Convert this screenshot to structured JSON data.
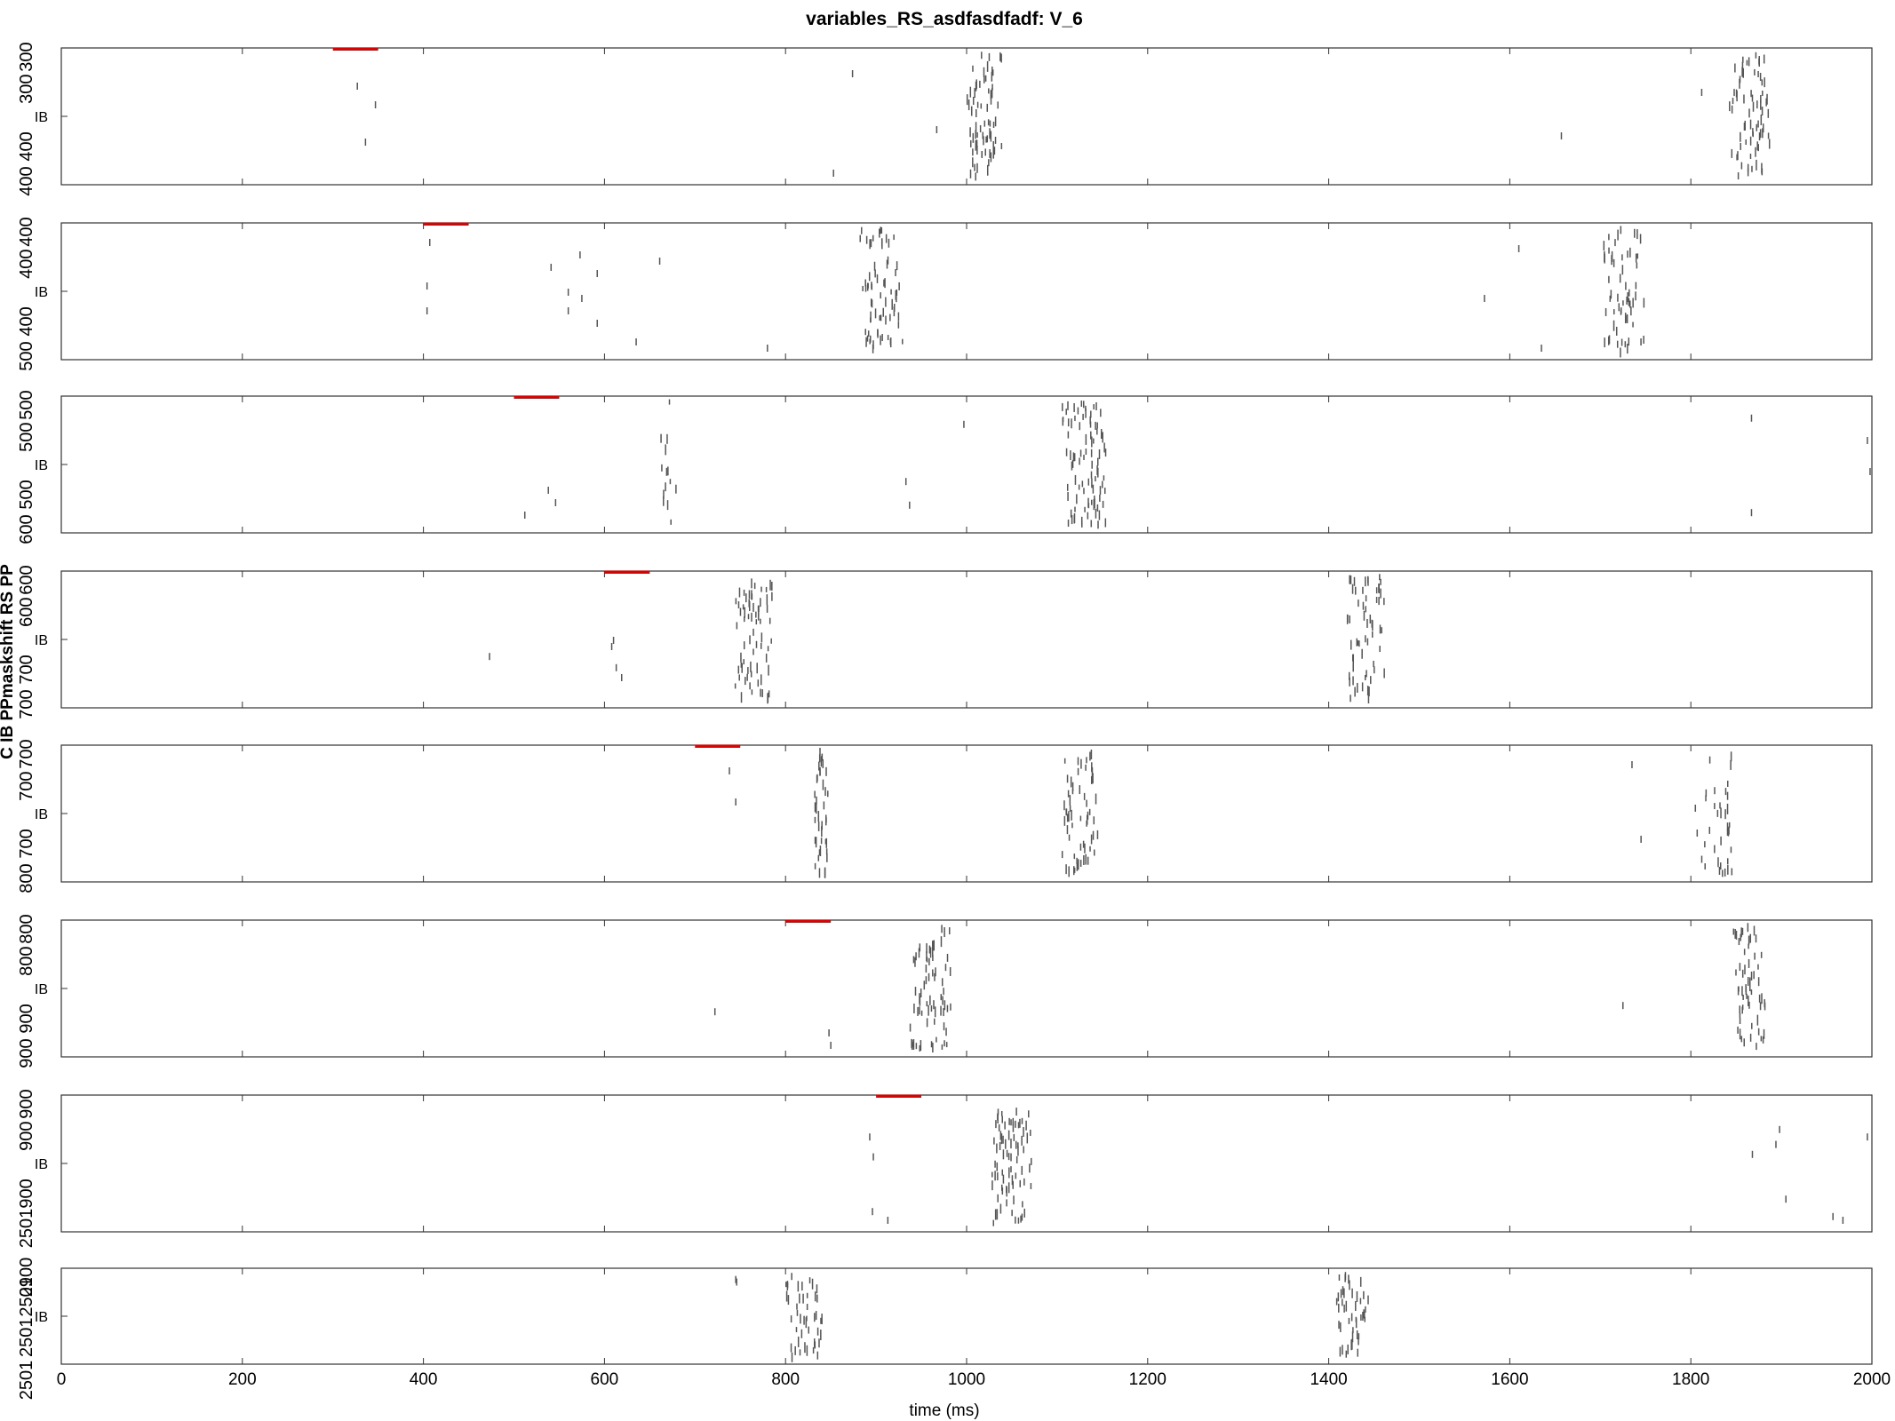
{
  "figure": {
    "title": "variables_RS_asdfasdfadf: V_6",
    "ylabel": "C IB PPmaskshift RS PP"
  },
  "chart_data": {
    "type": "raster",
    "xlabel": "time (ms)",
    "xlim": [
      0,
      2000
    ],
    "xticks": [
      "0",
      "200",
      "400",
      "600",
      "800",
      "1000",
      "1200",
      "1400",
      "1600",
      "1800",
      "2000"
    ],
    "grid": false,
    "legend": "none",
    "colors": {
      "spikes": "#555555",
      "stimulus": "#e00000",
      "axes": "#333333"
    },
    "panels": [
      {
        "name": "IB",
        "ytick_labels": [
          "300",
          "300",
          "400",
          "400"
        ],
        "stimulus": [
          300,
          350
        ],
        "bursts": [
          [
            1020,
            25,
            70
          ],
          [
            1865,
            25,
            70
          ]
        ],
        "isolated": [
          [
            327,
            0.25
          ],
          [
            347,
            0.4
          ],
          [
            336,
            0.7
          ],
          [
            853,
            0.95
          ],
          [
            874,
            0.15
          ],
          [
            967,
            0.6
          ],
          [
            1657,
            0.65
          ],
          [
            1812,
            0.3
          ]
        ]
      },
      {
        "name": "IB",
        "ytick_labels": [
          "400",
          "400",
          "400",
          "500"
        ],
        "stimulus": [
          400,
          450
        ],
        "bursts": [
          [
            905,
            25,
            70
          ],
          [
            1725,
            25,
            60
          ]
        ],
        "isolated": [
          [
            407,
            0.1
          ],
          [
            404,
            0.45
          ],
          [
            404,
            0.65
          ],
          [
            541,
            0.3
          ],
          [
            560,
            0.5
          ],
          [
            560,
            0.65
          ],
          [
            573,
            0.2
          ],
          [
            575,
            0.55
          ],
          [
            592,
            0.35
          ],
          [
            592,
            0.75
          ],
          [
            635,
            0.9
          ],
          [
            661,
            0.25
          ],
          [
            780,
            0.95
          ],
          [
            1572,
            0.55
          ],
          [
            1610,
            0.15
          ],
          [
            1635,
            0.95
          ]
        ]
      },
      {
        "name": "IB",
        "ytick_labels": [
          "500",
          "500",
          "500",
          "600"
        ],
        "stimulus": [
          500,
          550
        ],
        "bursts": [
          [
            1130,
            28,
            90
          ],
          [
            668,
            12,
            14
          ]
        ],
        "isolated": [
          [
            512,
            0.9
          ],
          [
            538,
            0.7
          ],
          [
            546,
            0.8
          ],
          [
            997,
            0.17
          ],
          [
            933,
            0.63
          ],
          [
            937,
            0.82
          ],
          [
            1867,
            0.12
          ],
          [
            1867,
            0.88
          ],
          [
            1995,
            0.3
          ],
          [
            1998,
            0.55
          ]
        ]
      },
      {
        "name": "IB",
        "ytick_labels": [
          "600",
          "600",
          "700",
          "700"
        ],
        "stimulus": [
          600,
          650
        ],
        "bursts": [
          [
            765,
            25,
            70
          ],
          [
            1440,
            25,
            60
          ]
        ],
        "isolated": [
          [
            473,
            0.63
          ],
          [
            610,
            0.5
          ],
          [
            608,
            0.55
          ],
          [
            613,
            0.72
          ],
          [
            619,
            0.8
          ]
        ]
      },
      {
        "name": "IB",
        "ytick_labels": [
          "700",
          "700",
          "700",
          "800"
        ],
        "stimulus": [
          700,
          750
        ],
        "bursts": [
          [
            840,
            10,
            40
          ],
          [
            1125,
            22,
            60
          ],
          [
            1830,
            20,
            35
          ]
        ],
        "isolated": [
          [
            738,
            0.15
          ],
          [
            745,
            0.4
          ],
          [
            1735,
            0.1
          ],
          [
            1745,
            0.7
          ],
          [
            1805,
            0.45
          ],
          [
            1807,
            0.65
          ]
        ]
      },
      {
        "name": "IB",
        "ytick_labels": [
          "800",
          "800",
          "900",
          "900"
        ],
        "stimulus": [
          800,
          850
        ],
        "bursts": [
          [
            960,
            25,
            70
          ],
          [
            1865,
            20,
            60
          ]
        ],
        "isolated": [
          [
            722,
            0.68
          ],
          [
            848,
            0.85
          ],
          [
            850,
            0.95
          ],
          [
            1725,
            0.63
          ]
        ]
      },
      {
        "name": "IB",
        "ytick_labels": [
          "900",
          "900",
          "900",
          "2501"
        ],
        "stimulus": [
          900,
          950
        ],
        "bursts": [
          [
            1050,
            25,
            80
          ]
        ],
        "isolated": [
          [
            893,
            0.28
          ],
          [
            897,
            0.44
          ],
          [
            896,
            0.88
          ],
          [
            913,
            0.95
          ],
          [
            1868,
            0.42
          ],
          [
            1894,
            0.34
          ],
          [
            1898,
            0.22
          ],
          [
            1905,
            0.78
          ],
          [
            1957,
            0.92
          ],
          [
            1968,
            0.95
          ],
          [
            1995,
            0.28
          ]
        ]
      },
      {
        "name": "IB",
        "ytick_labels": [
          "2900",
          "2501",
          "2501",
          ""
        ],
        "stimulus": null,
        "bursts": [
          [
            820,
            25,
            45
          ],
          [
            1425,
            20,
            45
          ]
        ],
        "isolated": [
          [
            745,
            0.05
          ],
          [
            746,
            0.08
          ]
        ]
      }
    ]
  }
}
